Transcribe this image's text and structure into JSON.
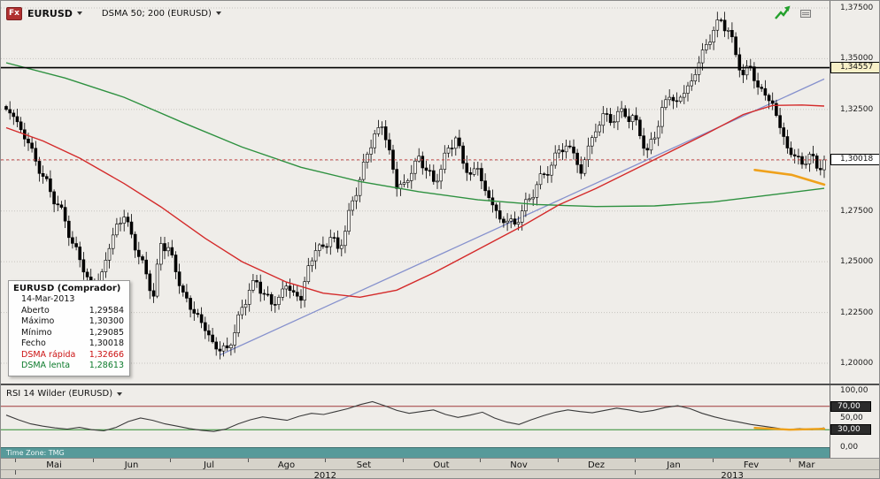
{
  "toolbar": {
    "logo": "Fx",
    "symbol": "EURUSD",
    "indicator": "DSMA 50; 200 (EURUSD)"
  },
  "tooltip": {
    "title": "EURUSD (Comprador)",
    "date": "14-Mar-2013",
    "rows": [
      {
        "label": "Aberto",
        "value": "1,29584",
        "color": "#111111"
      },
      {
        "label": "Máximo",
        "value": "1,30300",
        "color": "#111111"
      },
      {
        "label": "Mínimo",
        "value": "1,29085",
        "color": "#111111"
      },
      {
        "label": "Fecho",
        "value": "1,30018",
        "color": "#111111"
      },
      {
        "label": "DSMA rápida",
        "value": "1,32666",
        "color": "#cc1111"
      },
      {
        "label": "DSMA lenta",
        "value": "1,28613",
        "color": "#0b7a2a"
      }
    ]
  },
  "rsi_panel": {
    "label": "RSI 14 Wilder (EURUSD)"
  },
  "status": {
    "timezone": "Time Zone: TMG"
  },
  "chart_data": {
    "type": "candlestick",
    "symbol": "EURUSD",
    "price_axis": {
      "min": 1.2,
      "max": 1.375,
      "grid_values": [
        1.375,
        1.35,
        1.325,
        1.3,
        1.275,
        1.25,
        1.225,
        1.2
      ],
      "tick_labels": [
        {
          "value": 1.375,
          "label": "1,37500"
        },
        {
          "value": 1.35,
          "label": "1,35000"
        },
        {
          "value": 1.325,
          "label": "1,32500"
        },
        {
          "value": 1.275,
          "label": "1,27500"
        },
        {
          "value": 1.25,
          "label": "1,25000"
        },
        {
          "value": 1.225,
          "label": "1,22500"
        },
        {
          "value": 1.2,
          "label": "1,20000"
        }
      ]
    },
    "hline": {
      "value": 1.34557,
      "label": "1,34557",
      "color": "#000000"
    },
    "last_price_line": {
      "value": 1.30018,
      "label": "1,30018",
      "color": "#c04545"
    },
    "candles_close": [
      1.325,
      1.3215,
      1.315,
      1.3085,
      1.2995,
      1.292,
      1.2845,
      1.278,
      1.27,
      1.259,
      1.251,
      1.2425,
      1.2365,
      1.245,
      1.2565,
      1.2685,
      1.272,
      1.2635,
      1.2525,
      1.244,
      1.233,
      1.259,
      1.257,
      1.245,
      1.235,
      1.2265,
      1.224,
      1.216,
      1.2105,
      1.206,
      1.2075,
      1.215,
      1.2275,
      1.236,
      1.24,
      1.234,
      1.229,
      1.2325,
      1.238,
      1.235,
      1.231,
      1.248,
      1.2555,
      1.2575,
      1.262,
      1.2565,
      1.265,
      1.28,
      1.2905,
      1.303,
      1.313,
      1.3165,
      1.305,
      1.286,
      1.289,
      1.2935,
      1.302,
      1.295,
      1.2895,
      1.2955,
      1.306,
      1.311,
      1.2985,
      1.293,
      1.296,
      1.285,
      1.278,
      1.271,
      1.27,
      1.2685,
      1.275,
      1.281,
      1.288,
      1.293,
      1.2975,
      1.305,
      1.307,
      1.3035,
      1.2935,
      1.307,
      1.314,
      1.323,
      1.3185,
      1.324,
      1.3215,
      1.322,
      1.312,
      1.305,
      1.311,
      1.326,
      1.331,
      1.329,
      1.333,
      1.339,
      1.348,
      1.357,
      1.364,
      1.369,
      1.364,
      1.352,
      1.342,
      1.346,
      1.336,
      1.332,
      1.328,
      1.316,
      1.306,
      1.302,
      1.298,
      1.303,
      1.296,
      1.30018
    ],
    "dsma_fast": {
      "name": "DSMA 50",
      "color": "#d42a2a",
      "anchors": [
        [
          0,
          1.316
        ],
        [
          5,
          1.3095
        ],
        [
          10,
          1.301
        ],
        [
          16,
          1.2885
        ],
        [
          21,
          1.277
        ],
        [
          27,
          1.2615
        ],
        [
          32,
          1.25
        ],
        [
          38,
          1.24
        ],
        [
          43,
          1.2345
        ],
        [
          48,
          1.2325
        ],
        [
          53,
          1.236
        ],
        [
          58,
          1.2445
        ],
        [
          64,
          1.256
        ],
        [
          70,
          1.2675
        ],
        [
          75,
          1.278
        ],
        [
          80,
          1.286
        ],
        [
          85,
          1.295
        ],
        [
          90,
          1.304
        ],
        [
          95,
          1.313
        ],
        [
          100,
          1.3225
        ],
        [
          104,
          1.327
        ],
        [
          108,
          1.3272
        ],
        [
          111,
          1.32666
        ]
      ]
    },
    "dsma_slow": {
      "name": "DSMA 200",
      "color": "#2e9140",
      "anchors": [
        [
          0,
          1.348
        ],
        [
          8,
          1.3405
        ],
        [
          16,
          1.331
        ],
        [
          24,
          1.3185
        ],
        [
          32,
          1.3065
        ],
        [
          40,
          1.2965
        ],
        [
          48,
          1.2895
        ],
        [
          56,
          1.2845
        ],
        [
          64,
          1.2805
        ],
        [
          72,
          1.2782
        ],
        [
          80,
          1.2772
        ],
        [
          88,
          1.2775
        ],
        [
          96,
          1.2795
        ],
        [
          104,
          1.283
        ],
        [
          111,
          1.28613
        ]
      ]
    },
    "trendline": {
      "color": "#8691cd",
      "from": [
        0.261,
        1.204
      ],
      "to": [
        1.0,
        1.34
      ]
    },
    "orange_segment": {
      "color": "#efa11b",
      "points": [
        [
          0.915,
          1.2952
        ],
        [
          0.96,
          1.2928
        ],
        [
          1.0,
          1.288
        ]
      ]
    },
    "x_axis": {
      "months": [
        "Mai",
        "Jun",
        "Jul",
        "Ago",
        "Set",
        "Out",
        "Nov",
        "Dez",
        "Jan",
        "Fev",
        "Mar"
      ],
      "years": [
        {
          "label": "2012",
          "from_month": 0,
          "to_month": 8
        },
        {
          "label": "2013",
          "from_month": 8,
          "to_month": 11
        }
      ]
    },
    "rsi": {
      "name": "RSI 14 Wilder",
      "ylim": [
        0,
        100
      ],
      "levels": [
        {
          "value": 70,
          "color": "#a03a3a"
        },
        {
          "value": 30,
          "color": "#2f8b2f"
        }
      ],
      "axis_labels": [
        {
          "value": 100,
          "label": "100,00",
          "boxed": false
        },
        {
          "value": 70,
          "label": "70,00",
          "boxed": true
        },
        {
          "value": 50,
          "label": "50,00",
          "boxed": false
        },
        {
          "value": 30,
          "label": "30,00",
          "boxed": true
        },
        {
          "value": 0,
          "label": "0,00",
          "boxed": false
        }
      ],
      "values": [
        55,
        47,
        40,
        36,
        33,
        31,
        34,
        30,
        28,
        34,
        44,
        50,
        46,
        40,
        36,
        32,
        29,
        27,
        31,
        40,
        47,
        52,
        49,
        46,
        53,
        58,
        56,
        61,
        66,
        73,
        78,
        71,
        63,
        58,
        61,
        64,
        56,
        51,
        55,
        60,
        50,
        43,
        39,
        47,
        54,
        60,
        64,
        61,
        59,
        63,
        67,
        64,
        60,
        63,
        68,
        71,
        66,
        58,
        52,
        47,
        43,
        39,
        36,
        33,
        30,
        32,
        30,
        33
      ],
      "orange_tail": {
        "color": "#efa11b",
        "points": [
          [
            0.915,
            33
          ],
          [
            0.958,
            30
          ],
          [
            1.0,
            31.5
          ]
        ]
      }
    }
  }
}
